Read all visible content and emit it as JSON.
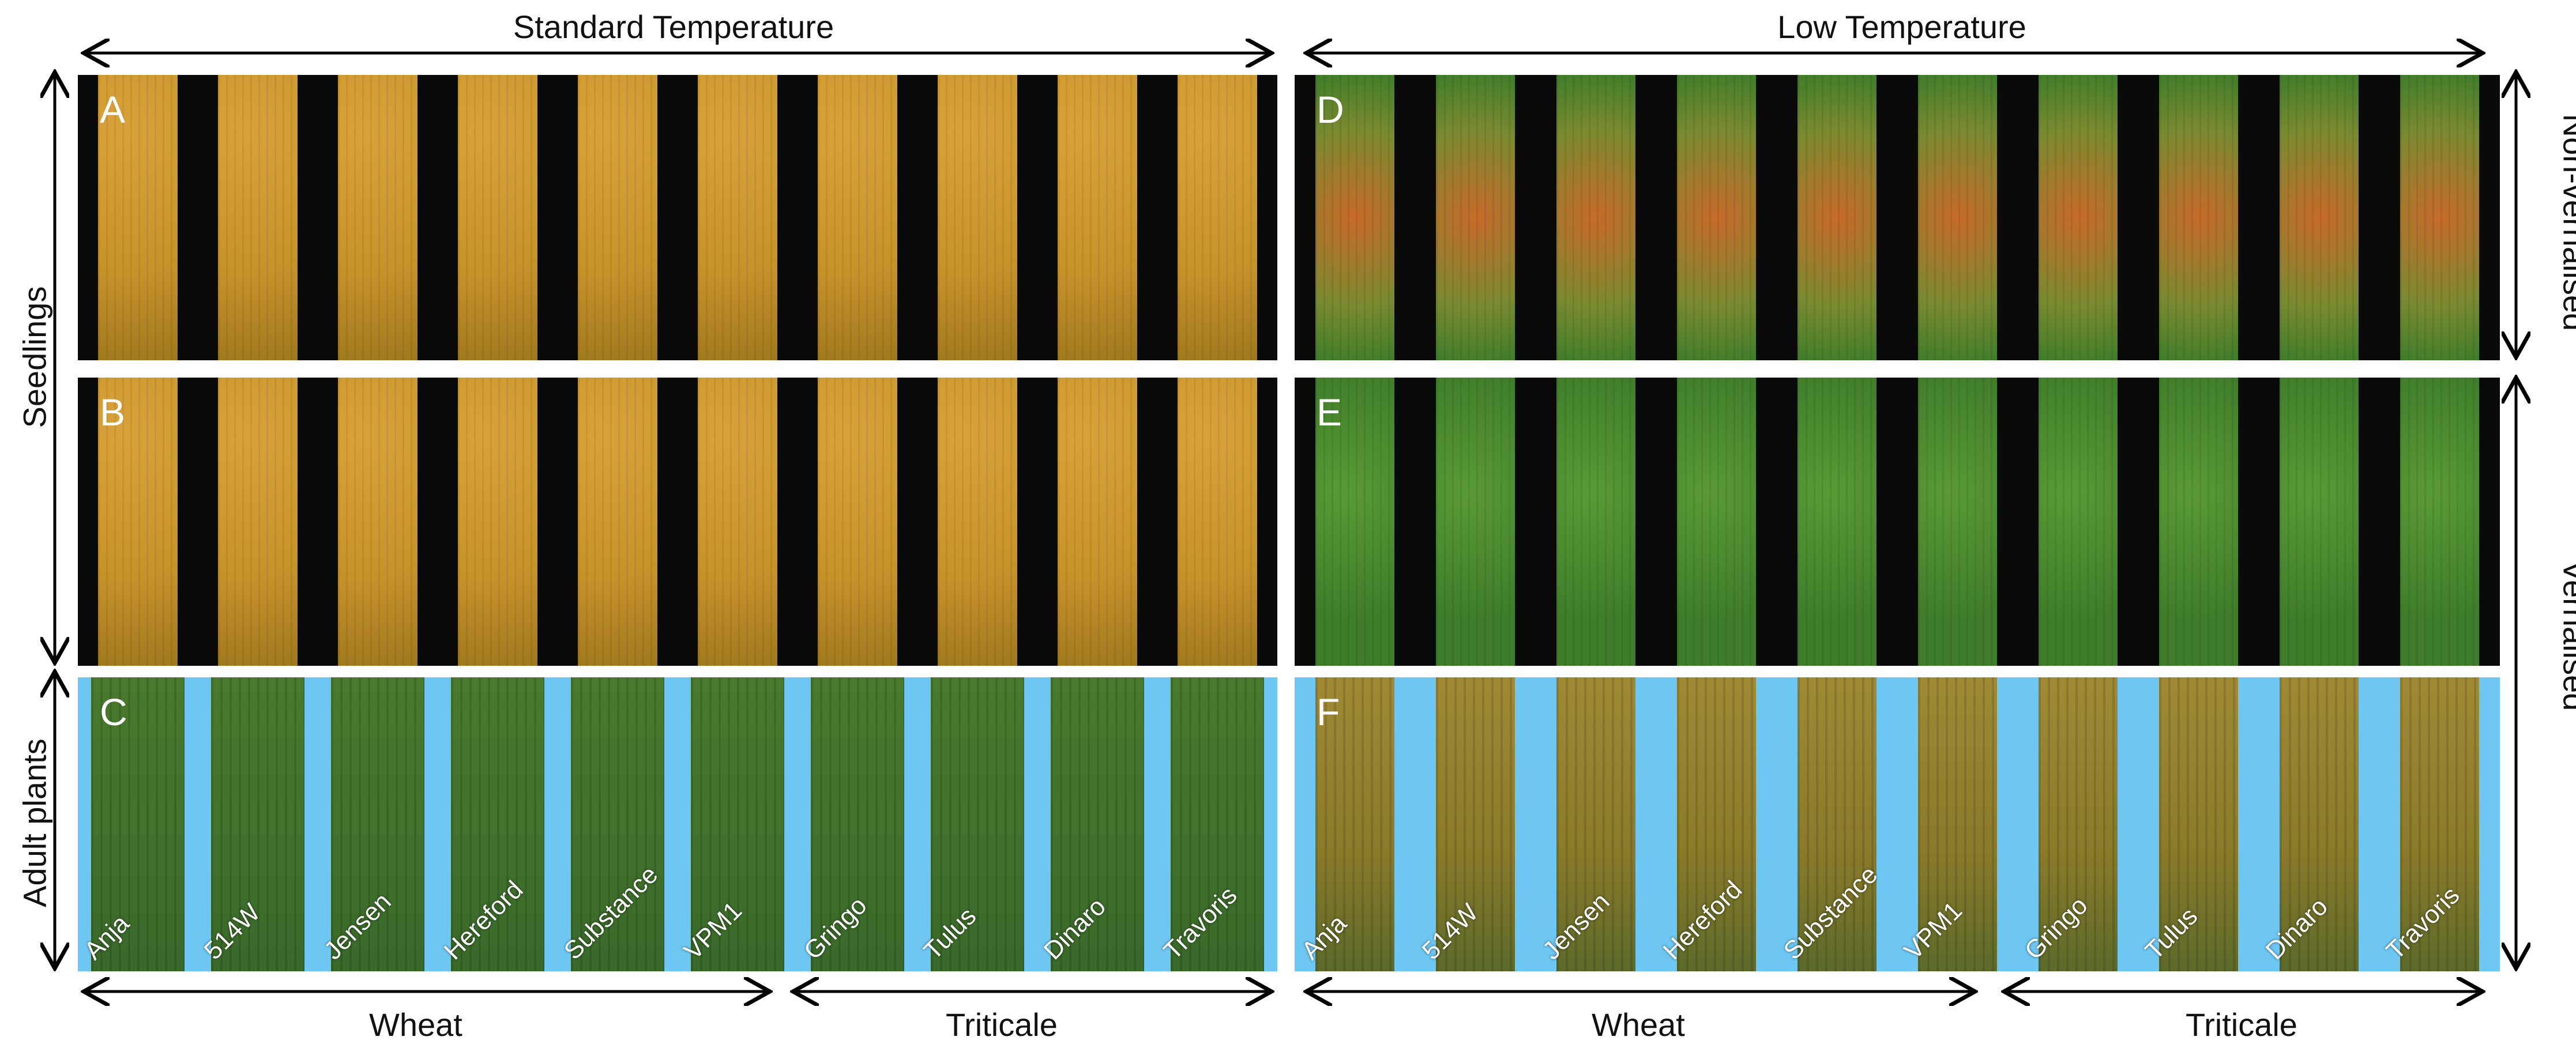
{
  "headers": {
    "standard": "Standard Temperature",
    "low": "Low Temperature"
  },
  "side_labels": {
    "seedlings": "Seedlings",
    "adult": "Adult plants",
    "non_vernalised": "Non-vernalised",
    "vernalised": "Vernalised"
  },
  "panels": {
    "A": "A",
    "B": "B",
    "C": "C",
    "D": "D",
    "E": "E",
    "F": "F"
  },
  "varieties": [
    "Anja",
    "514W",
    "Jensen",
    "Hereford",
    "Substance",
    "VPM1",
    "Gringo",
    "Tulus",
    "Dinaro",
    "Travoris"
  ],
  "groups": {
    "wheat": "Wheat",
    "triticale": "Triticale"
  },
  "colors": {
    "seedling_std": "#c8922a",
    "seedling_low": "#3f7d2a",
    "adult_std": "#3a6a2a",
    "adult_low": "#8a7a2a",
    "blue_bg": "#6ec6f2",
    "black_bg": "#0a0a0a"
  }
}
